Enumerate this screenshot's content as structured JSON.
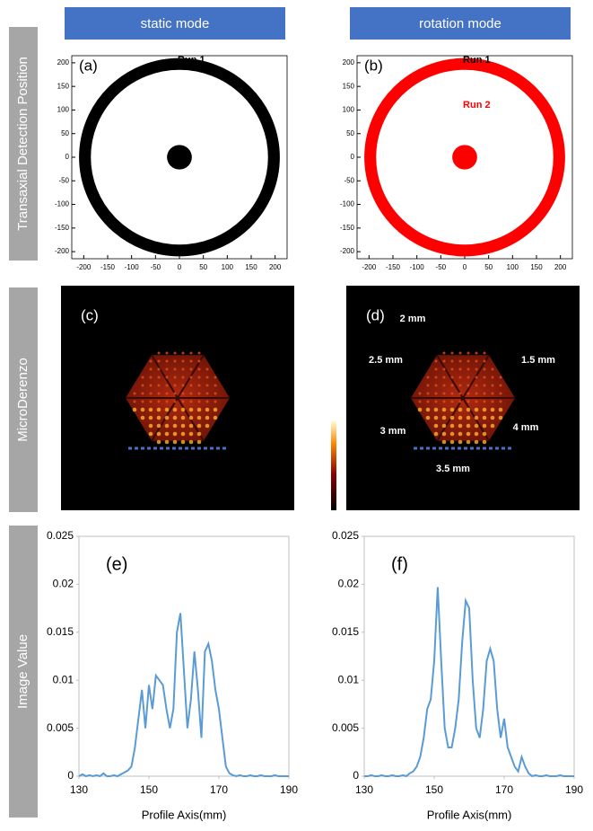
{
  "headers": [
    "static mode",
    "rotation mode"
  ],
  "row_labels": [
    "Transaxial Detection Position",
    "MicroDerenzo",
    "Image Value"
  ],
  "chart_data": [
    {
      "type": "ring",
      "panel_label": "(a)",
      "color": "#000000",
      "ring": {
        "r_inner": 185,
        "r_outer": 210
      },
      "core": {
        "r": 26
      },
      "annotations": [
        {
          "text": "Run 1",
          "at": [
            25,
            205
          ],
          "color": "#000000"
        }
      ],
      "xlim": [
        -225,
        225
      ],
      "ylim": [
        -215,
        215
      ],
      "xticks": [
        -200,
        -150,
        -100,
        -50,
        0,
        50,
        100,
        150,
        200
      ],
      "yticks": [
        -200,
        -150,
        -100,
        -50,
        0,
        50,
        100,
        150,
        200
      ]
    },
    {
      "type": "ring",
      "panel_label": "(b)",
      "color": "#ff0000",
      "ring": {
        "r_inner": 185,
        "r_outer": 210
      },
      "core": {
        "r": 26
      },
      "annotations": [
        {
          "text": "Run 1",
          "at": [
            25,
            205
          ],
          "color": "#000000"
        },
        {
          "text": "Run 2",
          "at": [
            25,
            110
          ],
          "color": "#ff0000"
        }
      ],
      "xlim": [
        -225,
        225
      ],
      "ylim": [
        -215,
        215
      ],
      "xticks": [
        -200,
        -150,
        -100,
        -50,
        0,
        50,
        100,
        150,
        200
      ],
      "yticks": [
        -200,
        -150,
        -100,
        -50,
        0,
        50,
        100,
        150,
        200
      ]
    },
    {
      "type": "line",
      "panel_label": "(e)",
      "xlabel": "Profile Axis(mm)",
      "color": "#5b9bd5",
      "xlim": [
        130,
        190
      ],
      "ylim": [
        0,
        0.025
      ],
      "xticks": [
        130,
        150,
        170,
        190
      ],
      "yticks": [
        0,
        0.005,
        0.01,
        0.015,
        0.02,
        0.025
      ],
      "x": [
        130,
        131,
        132,
        133,
        134,
        135,
        136,
        137,
        138,
        139,
        140,
        141,
        142,
        143,
        144,
        145,
        146,
        147,
        148,
        149,
        150,
        151,
        152,
        153,
        154,
        155,
        156,
        157,
        158,
        159,
        160,
        161,
        162,
        163,
        164,
        165,
        166,
        167,
        168,
        169,
        170,
        171,
        172,
        173,
        174,
        175,
        176,
        177,
        178,
        179,
        180,
        181,
        182,
        183,
        184,
        185,
        186,
        187,
        188,
        189,
        190
      ],
      "values": [
        0,
        0.0002,
        0,
        0.0001,
        0,
        0.0001,
        0,
        0.0003,
        0,
        0,
        0.0001,
        0,
        0.0002,
        0.0004,
        0.0006,
        0.001,
        0.003,
        0.006,
        0.009,
        0.005,
        0.0095,
        0.007,
        0.0105,
        0.01,
        0.0095,
        0.007,
        0.005,
        0.007,
        0.015,
        0.017,
        0.011,
        0.005,
        0.008,
        0.013,
        0.009,
        0.004,
        0.013,
        0.0138,
        0.012,
        0.009,
        0.007,
        0.004,
        0.001,
        0.0003,
        0.0001,
        0,
        0.0001,
        0,
        0,
        0.0001,
        0,
        0,
        0.0001,
        0,
        0,
        0,
        0.0001,
        0,
        0,
        0,
        0
      ]
    },
    {
      "type": "line",
      "panel_label": "(f)",
      "xlabel": "Profile Axis(mm)",
      "color": "#5b9bd5",
      "xlim": [
        130,
        190
      ],
      "ylim": [
        0,
        0.025
      ],
      "xticks": [
        130,
        150,
        170,
        190
      ],
      "yticks": [
        0,
        0.005,
        0.01,
        0.015,
        0.02,
        0.025
      ],
      "x": [
        130,
        131,
        132,
        133,
        134,
        135,
        136,
        137,
        138,
        139,
        140,
        141,
        142,
        143,
        144,
        145,
        146,
        147,
        148,
        149,
        150,
        151,
        152,
        153,
        154,
        155,
        156,
        157,
        158,
        159,
        160,
        161,
        162,
        163,
        164,
        165,
        166,
        167,
        168,
        169,
        170,
        171,
        172,
        173,
        174,
        175,
        176,
        177,
        178,
        179,
        180,
        181,
        182,
        183,
        184,
        185,
        186,
        187,
        188,
        189,
        190
      ],
      "values": [
        0,
        0,
        0.0001,
        0,
        0,
        0.0001,
        0,
        0,
        0.0001,
        0,
        0,
        0.0001,
        0,
        0.0003,
        0.0005,
        0.001,
        0.002,
        0.004,
        0.007,
        0.008,
        0.012,
        0.0197,
        0.012,
        0.005,
        0.003,
        0.003,
        0.005,
        0.008,
        0.014,
        0.0183,
        0.0175,
        0.01,
        0.005,
        0.004,
        0.007,
        0.012,
        0.0133,
        0.012,
        0.007,
        0.004,
        0.006,
        0.003,
        0.002,
        0.001,
        0.0005,
        0.002,
        0.001,
        0.0003,
        0,
        0.0001,
        0,
        0,
        0.0001,
        0,
        0,
        0,
        0.0001,
        0,
        0,
        0,
        0
      ]
    }
  ],
  "images": [
    {
      "panel_label": "(c)",
      "annotations": []
    },
    {
      "panel_label": "(d)",
      "annotations": [
        "2 mm",
        "2.5 mm",
        "1.5 mm",
        "3 mm",
        "4 mm",
        "3.5 mm"
      ]
    }
  ]
}
